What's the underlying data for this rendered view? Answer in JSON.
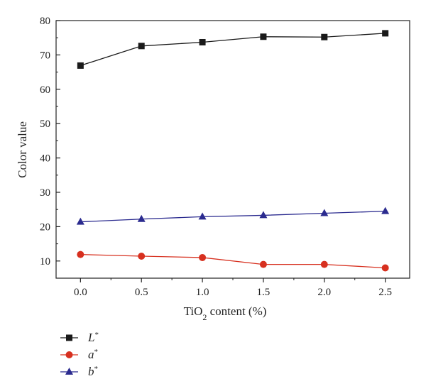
{
  "chart_data": {
    "type": "line",
    "title": "",
    "xlabel": {
      "prefix": "TiO",
      "subscript": "2",
      "suffix": " content (%)"
    },
    "ylabel": "Color value",
    "x": [
      0.0,
      0.5,
      1.0,
      1.5,
      2.0,
      2.5
    ],
    "xlim": [
      -0.2,
      2.7
    ],
    "ylim": [
      5,
      80
    ],
    "xticks": [
      "0.0",
      "0.5",
      "1.0",
      "1.5",
      "2.0",
      "2.5"
    ],
    "yticks": [
      "10",
      "20",
      "30",
      "40",
      "50",
      "60",
      "70",
      "80"
    ],
    "grid": false,
    "legend_position": "below-left",
    "series": [
      {
        "name": "L",
        "sup": "*",
        "marker": "square",
        "color": "#1a1a1a",
        "values": [
          66.9,
          72.6,
          73.7,
          75.3,
          75.2,
          76.3
        ]
      },
      {
        "name": "a",
        "sup": "*",
        "marker": "circle",
        "color": "#d7301f",
        "values": [
          11.9,
          11.4,
          11.0,
          9.0,
          9.0,
          8.0
        ]
      },
      {
        "name": "b",
        "sup": "*",
        "marker": "triangle",
        "color": "#2b2b8f",
        "values": [
          21.4,
          22.2,
          22.9,
          23.3,
          23.9,
          24.5
        ]
      }
    ]
  }
}
